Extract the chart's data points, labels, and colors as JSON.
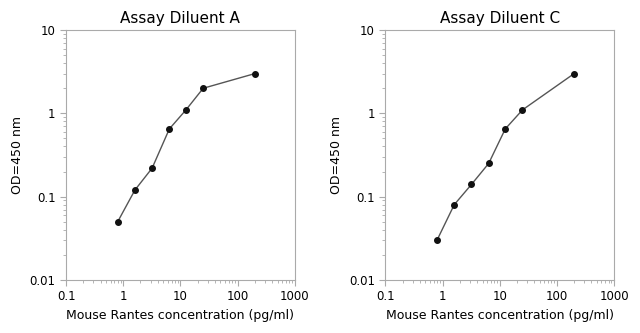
{
  "left": {
    "title": "Assay Diluent A",
    "x": [
      0.8,
      1.6,
      3.2,
      6.4,
      12.5,
      25,
      200
    ],
    "y": [
      0.05,
      0.12,
      0.22,
      0.65,
      1.1,
      2.0,
      3.0
    ],
    "xlim": [
      0.1,
      1000
    ],
    "ylim": [
      0.01,
      10
    ],
    "xlabel": "Mouse Rantes concentration (pg/ml)",
    "ylabel": "OD=450 nm"
  },
  "right": {
    "title": "Assay Diluent C",
    "x": [
      0.8,
      1.6,
      3.2,
      6.4,
      12.5,
      25,
      200
    ],
    "y": [
      0.03,
      0.08,
      0.14,
      0.25,
      0.65,
      1.1,
      3.0
    ],
    "xlim": [
      0.1,
      1000
    ],
    "ylim": [
      0.01,
      10
    ],
    "xlabel": "Mouse Rantes concentration (pg/ml)",
    "ylabel": "OD=450 nm"
  },
  "line_color": "#555555",
  "marker_color": "#111111",
  "marker_size": 4,
  "line_width": 1.0,
  "title_fontsize": 11,
  "label_fontsize": 9,
  "tick_fontsize": 8.5,
  "background_color": "#ffffff",
  "spine_color": "#aaaaaa",
  "xtick_labels": [
    "0.1",
    "1",
    "10",
    "100",
    "1000"
  ],
  "xtick_vals": [
    0.1,
    1,
    10,
    100,
    1000
  ],
  "ytick_labels": [
    "0.01",
    "0.1",
    "1",
    "10"
  ],
  "ytick_vals": [
    0.01,
    0.1,
    1,
    10
  ]
}
